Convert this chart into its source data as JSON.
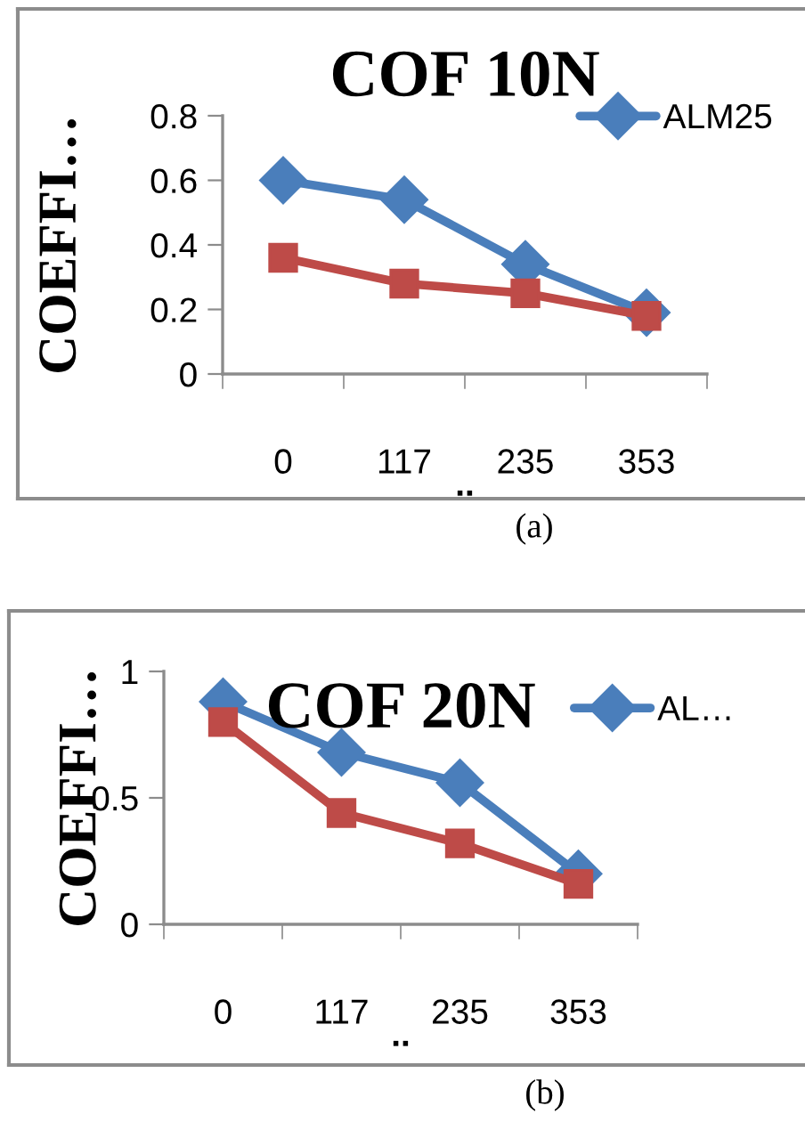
{
  "chart_data": [
    {
      "type": "line",
      "title": "COF 10N",
      "ylabel": "COEFFI…",
      "xlabel": "..",
      "categories": [
        "0",
        "117",
        "235",
        "353"
      ],
      "series": [
        {
          "name": "ALM25",
          "color": "#4a7ebb",
          "marker": "diamond",
          "values": [
            0.6,
            0.54,
            0.34,
            0.19
          ]
        },
        {
          "color": "#be4b48",
          "marker": "square",
          "values": [
            0.36,
            0.28,
            0.25,
            0.18
          ]
        }
      ],
      "ylim": [
        0,
        0.8
      ],
      "yticks": [
        0,
        0.2,
        0.4,
        0.6,
        0.8
      ],
      "grid": false,
      "legend": "top right",
      "annotations": [
        "(a)"
      ]
    },
    {
      "type": "line",
      "title": "COF 20N",
      "ylabel": "COEFFI…",
      "xlabel": "..",
      "categories": [
        "0",
        "117",
        "235",
        "353"
      ],
      "series": [
        {
          "name": "AL…",
          "color": "#4a7ebb",
          "marker": "diamond",
          "values": [
            0.88,
            0.68,
            0.56,
            0.2
          ]
        },
        {
          "color": "#be4b48",
          "marker": "square",
          "values": [
            0.8,
            0.44,
            0.32,
            0.16
          ]
        }
      ],
      "ylim": [
        0,
        1
      ],
      "yticks": [
        0,
        0.5,
        1
      ],
      "grid": false,
      "legend": "top right",
      "annotations": [
        "(b)"
      ]
    }
  ]
}
